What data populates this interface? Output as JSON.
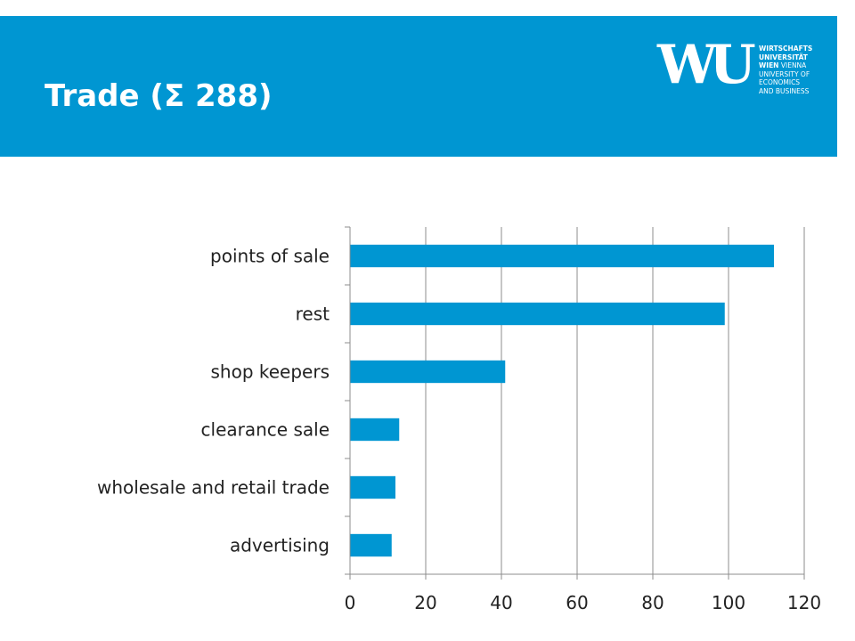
{
  "header": {
    "title": "Trade (Σ 288)",
    "background_color": "#0096d2"
  },
  "logo": {
    "mark": "WU",
    "lines": [
      "WIRTSCHAFTS",
      "UNIVERSITÄT",
      "WIEN",
      "VIENNA",
      "UNIVERSITY OF",
      "ECONOMICS",
      "AND BUSINESS"
    ]
  },
  "chart_data": {
    "type": "bar",
    "orientation": "horizontal",
    "categories": [
      "points of sale",
      "rest",
      "shop keepers",
      "clearance sale",
      "wholesale and retail trade",
      "advertising"
    ],
    "values": [
      112,
      99,
      41,
      13,
      12,
      11
    ],
    "xlim": [
      0,
      120
    ],
    "xticks": [
      0,
      20,
      40,
      60,
      80,
      100,
      120
    ],
    "grid": "vertical",
    "bar_color": "#0096d2"
  }
}
